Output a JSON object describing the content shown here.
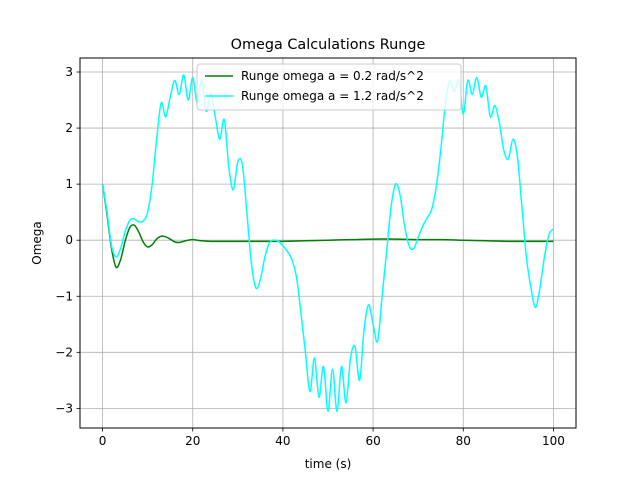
{
  "chart_data": {
    "type": "line",
    "title": "Omega Calculations Runge",
    "xlabel": "time (s)",
    "ylabel": "Omega",
    "xlim": [
      -5,
      105
    ],
    "ylim": [
      -3.35,
      3.25
    ],
    "xticks": [
      0,
      20,
      40,
      60,
      80,
      100
    ],
    "yticks": [
      -3,
      -2,
      -1,
      0,
      1,
      2,
      3
    ],
    "grid": true,
    "legend_position": "top-center",
    "series": [
      {
        "name": "Runge omega a = 0.2 rad/s^2",
        "color": "#008000",
        "x": [
          0,
          1,
          2,
          3,
          4,
          5,
          6,
          7,
          8,
          9,
          10,
          11,
          12,
          13,
          14,
          15,
          16,
          17,
          18,
          19,
          20,
          22,
          24,
          26,
          28,
          30,
          35,
          40,
          45,
          50,
          55,
          60,
          65,
          70,
          75,
          80,
          85,
          90,
          95,
          100
        ],
        "y": [
          1.0,
          0.45,
          -0.15,
          -0.48,
          -0.35,
          -0.02,
          0.22,
          0.27,
          0.15,
          -0.03,
          -0.12,
          -0.08,
          0.02,
          0.07,
          0.06,
          0.02,
          -0.03,
          -0.04,
          -0.02,
          0.0,
          0.01,
          -0.01,
          -0.02,
          -0.02,
          -0.02,
          -0.02,
          -0.02,
          -0.02,
          -0.01,
          0.0,
          0.01,
          0.02,
          0.02,
          0.01,
          0.01,
          0.0,
          -0.01,
          -0.02,
          -0.02,
          -0.02
        ]
      },
      {
        "name": "Runge omega a = 1.2 rad/s^2",
        "color": "#00ffff",
        "x": [
          0,
          1,
          2,
          3,
          4,
          5,
          6,
          7,
          8,
          9,
          10,
          11,
          12,
          13,
          14,
          15,
          16,
          17,
          18,
          19,
          20,
          21,
          22,
          23,
          24,
          25,
          26,
          27,
          28,
          29,
          30,
          31,
          32,
          33,
          34,
          35,
          36,
          37,
          38,
          39,
          40,
          41,
          42,
          43,
          44,
          45,
          46,
          47,
          48,
          49,
          50,
          51,
          52,
          53,
          54,
          55,
          56,
          57,
          58,
          59,
          60,
          61,
          62,
          63,
          64,
          65,
          66,
          67,
          68,
          69,
          70,
          71,
          72,
          73,
          74,
          75,
          76,
          77,
          78,
          79,
          80,
          81,
          82,
          83,
          84,
          85,
          86,
          87,
          88,
          89,
          90,
          91,
          92,
          93,
          94,
          95,
          96,
          97,
          98,
          99,
          100
        ],
        "y": [
          1.0,
          0.5,
          -0.1,
          -0.3,
          -0.15,
          0.15,
          0.35,
          0.38,
          0.33,
          0.34,
          0.5,
          1.0,
          1.8,
          2.45,
          2.2,
          2.55,
          2.85,
          2.6,
          2.95,
          2.5,
          2.9,
          2.45,
          2.85,
          2.3,
          2.6,
          2.2,
          1.8,
          2.15,
          1.3,
          0.9,
          1.4,
          1.35,
          0.5,
          -0.4,
          -0.85,
          -0.7,
          -0.3,
          -0.05,
          0.0,
          -0.02,
          -0.1,
          -0.2,
          -0.35,
          -0.65,
          -1.3,
          -2.0,
          -2.7,
          -2.1,
          -2.8,
          -2.25,
          -3.05,
          -2.3,
          -3.05,
          -2.25,
          -2.9,
          -2.1,
          -1.9,
          -2.5,
          -1.6,
          -1.15,
          -1.5,
          -1.8,
          -1.0,
          -0.2,
          0.6,
          1.0,
          0.8,
          0.25,
          -0.1,
          -0.15,
          0.05,
          0.25,
          0.4,
          0.55,
          0.95,
          1.6,
          2.4,
          2.85,
          2.65,
          2.85,
          2.25,
          2.85,
          2.6,
          2.9,
          2.55,
          2.75,
          2.2,
          2.4,
          2.1,
          1.6,
          1.45,
          1.8,
          1.5,
          0.6,
          -0.3,
          -0.85,
          -1.2,
          -0.85,
          -0.3,
          0.1,
          0.2
        ]
      }
    ]
  }
}
